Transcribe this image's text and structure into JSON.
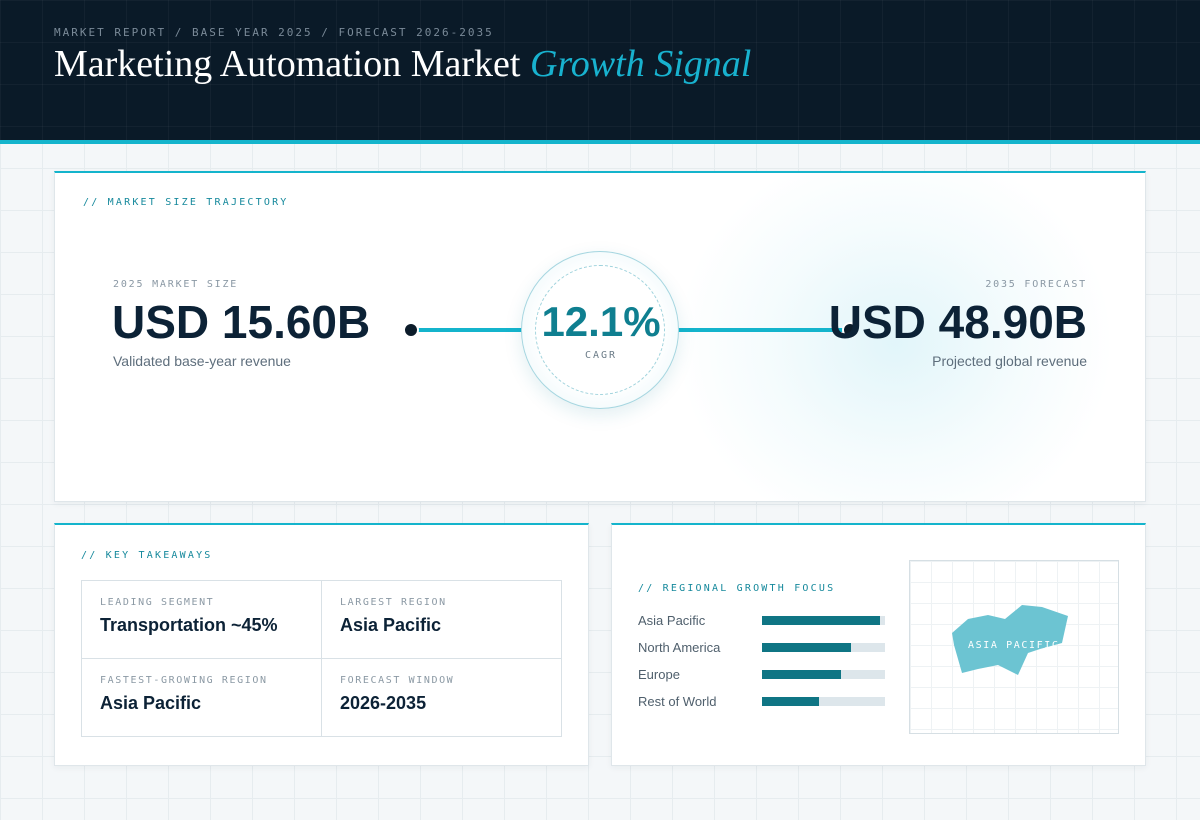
{
  "header": {
    "eyebrow": "MARKET REPORT / BASE YEAR 2025 / FORECAST 2026-2035",
    "title_main": "Marketing Automation Market",
    "title_accent": "Growth Signal"
  },
  "trajectory": {
    "section_label": "// MARKET SIZE TRAJECTORY",
    "start": {
      "label": "2025 MARKET SIZE",
      "value": "USD 15.60B",
      "sub": "Validated base-year revenue"
    },
    "cagr": {
      "value": "12.1%",
      "label": "CAGR"
    },
    "end": {
      "label": "2035 FORECAST",
      "value": "USD 48.90B",
      "sub": "Projected global revenue"
    }
  },
  "takeaways": {
    "section_label": "// KEY TAKEAWAYS",
    "items": [
      {
        "label": "LEADING SEGMENT",
        "value": "Transportation ~45%"
      },
      {
        "label": "LARGEST REGION",
        "value": "Asia Pacific"
      },
      {
        "label": "FASTEST-GROWING REGION",
        "value": "Asia Pacific"
      },
      {
        "label": "FORECAST WINDOW",
        "value": "2026-2035"
      }
    ]
  },
  "regional": {
    "section_label": "// REGIONAL GROWTH FOCUS",
    "map_label": "ASIA PACIFIC",
    "colors": {
      "bar": "#0f7584",
      "track": "#dde6eb",
      "map_region": "#6cc4d2"
    }
  },
  "chart_data": {
    "type": "bar",
    "categories": [
      "Asia Pacific",
      "North America",
      "Europe",
      "Rest of World"
    ],
    "values": [
      0.96,
      0.72,
      0.64,
      0.46
    ]
  }
}
